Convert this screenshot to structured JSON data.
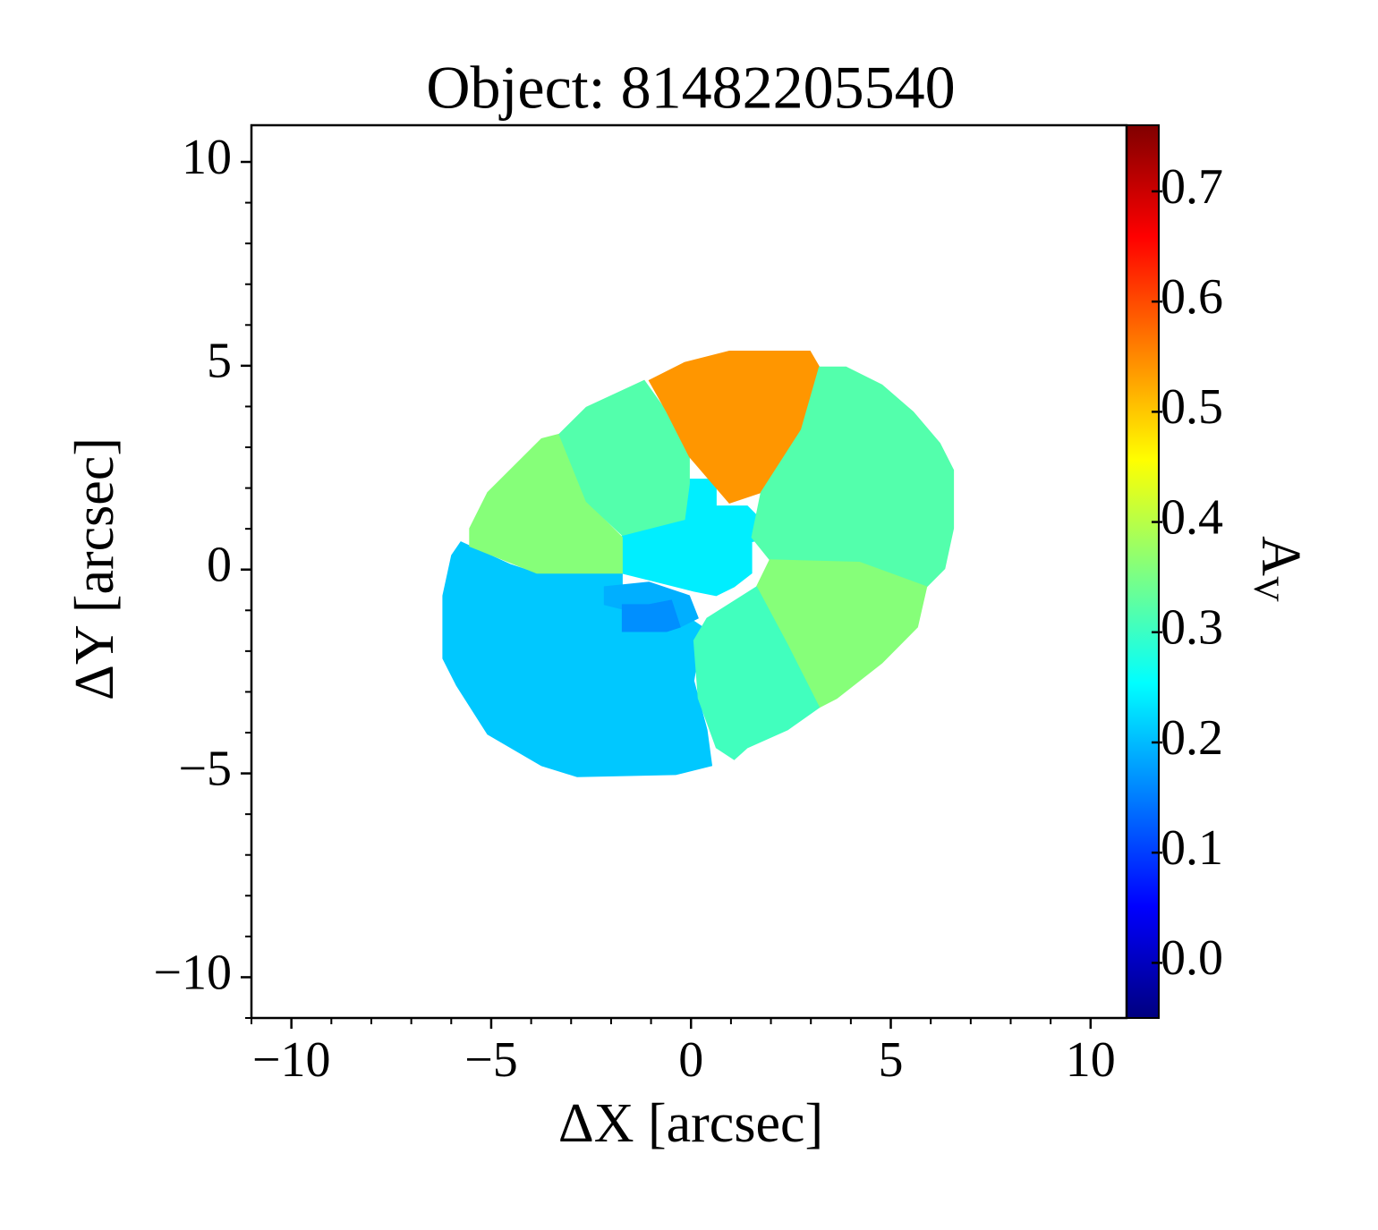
{
  "chart_data": {
    "type": "map2d",
    "title": "Object: 81482205540",
    "xlabel": "ΔX [arcsec]",
    "ylabel": "ΔY [arcsec]",
    "xlim": [
      -11,
      10.9
    ],
    "ylim": [
      -11,
      10.9
    ],
    "xticks": [
      {
        "value": -10,
        "label": "−10"
      },
      {
        "value": -5,
        "label": "−5"
      },
      0,
      5,
      10
    ],
    "yticks": [
      {
        "value": -10,
        "label": "−10"
      },
      {
        "value": -5,
        "label": "−5"
      },
      0,
      5,
      10
    ],
    "xminorticks": [
      -11,
      -9,
      -8,
      -7,
      -6,
      -4,
      -3,
      -2,
      -1,
      1,
      2,
      3,
      4,
      6,
      7,
      8,
      9
    ],
    "yminorticks": [
      -11,
      -9,
      -8,
      -7,
      -6,
      -4,
      -3,
      -2,
      -1,
      1,
      2,
      3,
      4,
      6,
      7,
      8,
      9
    ],
    "colormap": "jet",
    "colorbar": {
      "label": "A",
      "label_sub": "V",
      "lim": [
        -0.05,
        0.76
      ],
      "ticks": [
        {
          "value": 0,
          "label": "0.0"
        },
        0.1,
        0.2,
        0.3,
        0.4,
        0.5,
        0.6,
        0.7
      ]
    },
    "regions": [
      {
        "value": 0.21,
        "polygon": [
          [
            -5.76,
            0.68
          ],
          [
            -4.53,
            0.13
          ],
          [
            -3.86,
            -0.09
          ],
          [
            -1.72,
            -0.09
          ],
          [
            -1.72,
            -0.53
          ],
          [
            -0.04,
            -1.19
          ],
          [
            0.29,
            -1.41
          ],
          [
            0.07,
            -2.73
          ],
          [
            0.4,
            -3.93
          ],
          [
            0.52,
            -4.81
          ],
          [
            -0.38,
            -5.03
          ],
          [
            -2.85,
            -5.08
          ],
          [
            -3.74,
            -4.81
          ],
          [
            -5.09,
            -4.04
          ],
          [
            -5.87,
            -2.84
          ],
          [
            -6.21,
            -2.18
          ],
          [
            -6.21,
            -0.64
          ],
          [
            -5.99,
            0.35
          ]
        ]
      },
      {
        "value": 0.19,
        "polygon": [
          [
            -2.17,
            -0.42
          ],
          [
            -1.05,
            -0.31
          ],
          [
            -0.04,
            -0.64
          ],
          [
            0.18,
            -1.19
          ],
          [
            -0.27,
            -1.41
          ],
          [
            -1.72,
            -0.97
          ],
          [
            -2.17,
            -0.86
          ]
        ]
      },
      {
        "value": 0.165,
        "polygon": [
          [
            -1.72,
            -0.86
          ],
          [
            -1.05,
            -0.86
          ],
          [
            -0.49,
            -0.75
          ],
          [
            -0.27,
            -1.41
          ],
          [
            -0.61,
            -1.52
          ],
          [
            -1.05,
            -1.52
          ],
          [
            -1.72,
            -1.52
          ]
        ]
      },
      {
        "value": 0.24,
        "polygon": [
          [
            -0.16,
            2.22
          ],
          [
            0.63,
            2.22
          ],
          [
            0.63,
            1.56
          ],
          [
            1.41,
            1.56
          ],
          [
            1.97,
            1.01
          ],
          [
            1.97,
            0.79
          ],
          [
            1.52,
            0.68
          ],
          [
            1.52,
            -0.09
          ],
          [
            1.08,
            -0.42
          ],
          [
            0.63,
            -0.64
          ],
          [
            0.07,
            -0.53
          ],
          [
            -0.83,
            -0.31
          ],
          [
            -1.72,
            -0.09
          ],
          [
            -1.72,
            0.9
          ],
          [
            -0.72,
            1.12
          ],
          [
            -0.16,
            1.34
          ]
        ]
      },
      {
        "value": 0.36,
        "polygon": [
          [
            -5.54,
            1.01
          ],
          [
            -5.09,
            1.89
          ],
          [
            -3.74,
            3.21
          ],
          [
            -3.3,
            3.32
          ],
          [
            -2.62,
            1.67
          ],
          [
            -1.72,
            0.79
          ],
          [
            -1.72,
            -0.09
          ],
          [
            -3.86,
            -0.09
          ],
          [
            -5.54,
            0.57
          ]
        ]
      },
      {
        "value": 0.32,
        "polygon": [
          [
            -3.3,
            3.32
          ],
          [
            -2.62,
            3.98
          ],
          [
            -1.17,
            4.64
          ],
          [
            -0.61,
            3.87
          ],
          [
            -0.04,
            2.77
          ],
          [
            -0.04,
            2.11
          ],
          [
            -0.16,
            1.23
          ],
          [
            -1.72,
            0.84
          ],
          [
            -2.62,
            1.67
          ]
        ]
      },
      {
        "value": 0.54,
        "polygon": [
          [
            -1.05,
            4.64
          ],
          [
            -0.16,
            5.08
          ],
          [
            0.96,
            5.36
          ],
          [
            2.98,
            5.36
          ],
          [
            3.21,
            4.97
          ],
          [
            2.76,
            3.43
          ],
          [
            1.75,
            1.89
          ],
          [
            0.96,
            1.63
          ],
          [
            -0.04,
            2.77
          ],
          [
            -0.61,
            3.87
          ]
        ]
      },
      {
        "value": 0.32,
        "polygon": [
          [
            3.21,
            4.97
          ],
          [
            3.88,
            4.97
          ],
          [
            4.78,
            4.53
          ],
          [
            5.56,
            3.87
          ],
          [
            6.23,
            3.1
          ],
          [
            6.57,
            2.44
          ],
          [
            6.57,
            1.01
          ],
          [
            6.35,
            0.02
          ],
          [
            5.9,
            -0.42
          ],
          [
            4.22,
            0.13
          ],
          [
            1.97,
            0.24
          ],
          [
            1.52,
            0.79
          ],
          [
            1.75,
            1.89
          ],
          [
            2.76,
            3.43
          ]
        ]
      },
      {
        "value": 0.36,
        "polygon": [
          [
            1.97,
            0.24
          ],
          [
            4.22,
            0.18
          ],
          [
            5.9,
            -0.42
          ],
          [
            5.67,
            -1.41
          ],
          [
            4.78,
            -2.29
          ],
          [
            3.65,
            -3.16
          ],
          [
            3.21,
            -3.38
          ],
          [
            2.42,
            -1.85
          ],
          [
            1.64,
            -0.42
          ]
        ]
      },
      {
        "value": 0.305,
        "polygon": [
          [
            0.4,
            -1.19
          ],
          [
            1.64,
            -0.42
          ],
          [
            2.42,
            -1.85
          ],
          [
            3.21,
            -3.38
          ],
          [
            2.42,
            -3.93
          ],
          [
            1.41,
            -4.37
          ],
          [
            1.08,
            -4.66
          ],
          [
            0.63,
            -4.37
          ],
          [
            0.18,
            -3.16
          ],
          [
            0.07,
            -1.74
          ]
        ]
      }
    ]
  }
}
